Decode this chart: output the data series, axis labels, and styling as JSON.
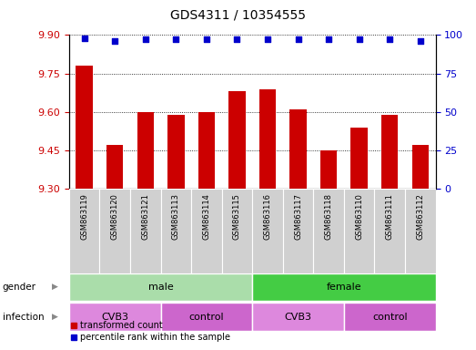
{
  "title": "GDS4311 / 10354555",
  "samples": [
    "GSM863119",
    "GSM863120",
    "GSM863121",
    "GSM863113",
    "GSM863114",
    "GSM863115",
    "GSM863116",
    "GSM863117",
    "GSM863118",
    "GSM863110",
    "GSM863111",
    "GSM863112"
  ],
  "bar_values": [
    9.78,
    9.47,
    9.6,
    9.59,
    9.6,
    9.68,
    9.69,
    9.61,
    9.45,
    9.54,
    9.59,
    9.47
  ],
  "percentile_values": [
    98,
    96,
    97,
    97,
    97,
    97,
    97,
    97,
    97,
    97,
    97,
    96
  ],
  "ylim": [
    9.3,
    9.9
  ],
  "yticks": [
    9.3,
    9.45,
    9.6,
    9.75,
    9.9
  ],
  "right_yticks": [
    0,
    25,
    50,
    75,
    100
  ],
  "bar_color": "#cc0000",
  "dot_color": "#0000cc",
  "gender_male_color": "#aaddaa",
  "gender_female_color": "#44cc44",
  "infection_cvb3_color": "#dd88dd",
  "infection_control_color": "#cc66cc",
  "gender_labels": [
    {
      "label": "male",
      "start": 0,
      "end": 6
    },
    {
      "label": "female",
      "start": 6,
      "end": 12
    }
  ],
  "infection_labels": [
    {
      "label": "CVB3",
      "start": 0,
      "end": 3
    },
    {
      "label": "control",
      "start": 3,
      "end": 6
    },
    {
      "label": "CVB3",
      "start": 6,
      "end": 9
    },
    {
      "label": "control",
      "start": 9,
      "end": 12
    }
  ],
  "legend_bar_label": "transformed count",
  "legend_dot_label": "percentile rank within the sample"
}
